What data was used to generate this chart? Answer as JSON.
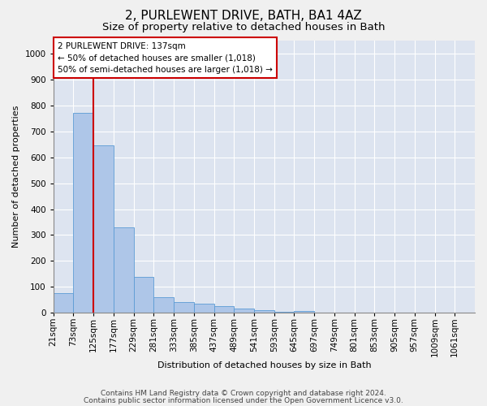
{
  "title": "2, PURLEWENT DRIVE, BATH, BA1 4AZ",
  "subtitle": "Size of property relative to detached houses in Bath",
  "xlabel": "Distribution of detached houses by size in Bath",
  "ylabel": "Number of detached properties",
  "bar_labels": [
    "21sqm",
    "73sqm",
    "125sqm",
    "177sqm",
    "229sqm",
    "281sqm",
    "333sqm",
    "385sqm",
    "437sqm",
    "489sqm",
    "541sqm",
    "593sqm",
    "645sqm",
    "697sqm",
    "749sqm",
    "801sqm",
    "853sqm",
    "905sqm",
    "957sqm",
    "1009sqm",
    "1061sqm"
  ],
  "bar_heights": [
    75,
    770,
    645,
    330,
    140,
    60,
    40,
    35,
    25,
    18,
    10,
    5,
    8,
    0,
    0,
    0,
    0,
    0,
    0,
    0,
    0
  ],
  "bar_color": "#aec6e8",
  "bar_edge_color": "#5b9bd5",
  "background_color": "#dde4f0",
  "fig_background_color": "#f0f0f0",
  "grid_color": "#ffffff",
  "ylim": [
    0,
    1050
  ],
  "yticks": [
    0,
    100,
    200,
    300,
    400,
    500,
    600,
    700,
    800,
    900,
    1000
  ],
  "vline_x": 2.0,
  "vline_color": "#cc0000",
  "annotation_text": "2 PURLEWENT DRIVE: 137sqm\n← 50% of detached houses are smaller (1,018)\n50% of semi-detached houses are larger (1,018) →",
  "footer_line1": "Contains HM Land Registry data © Crown copyright and database right 2024.",
  "footer_line2": "Contains public sector information licensed under the Open Government Licence v3.0.",
  "title_fontsize": 11,
  "subtitle_fontsize": 9.5,
  "axis_label_fontsize": 8,
  "tick_fontsize": 7.5,
  "annotation_fontsize": 7.5,
  "footer_fontsize": 6.5
}
